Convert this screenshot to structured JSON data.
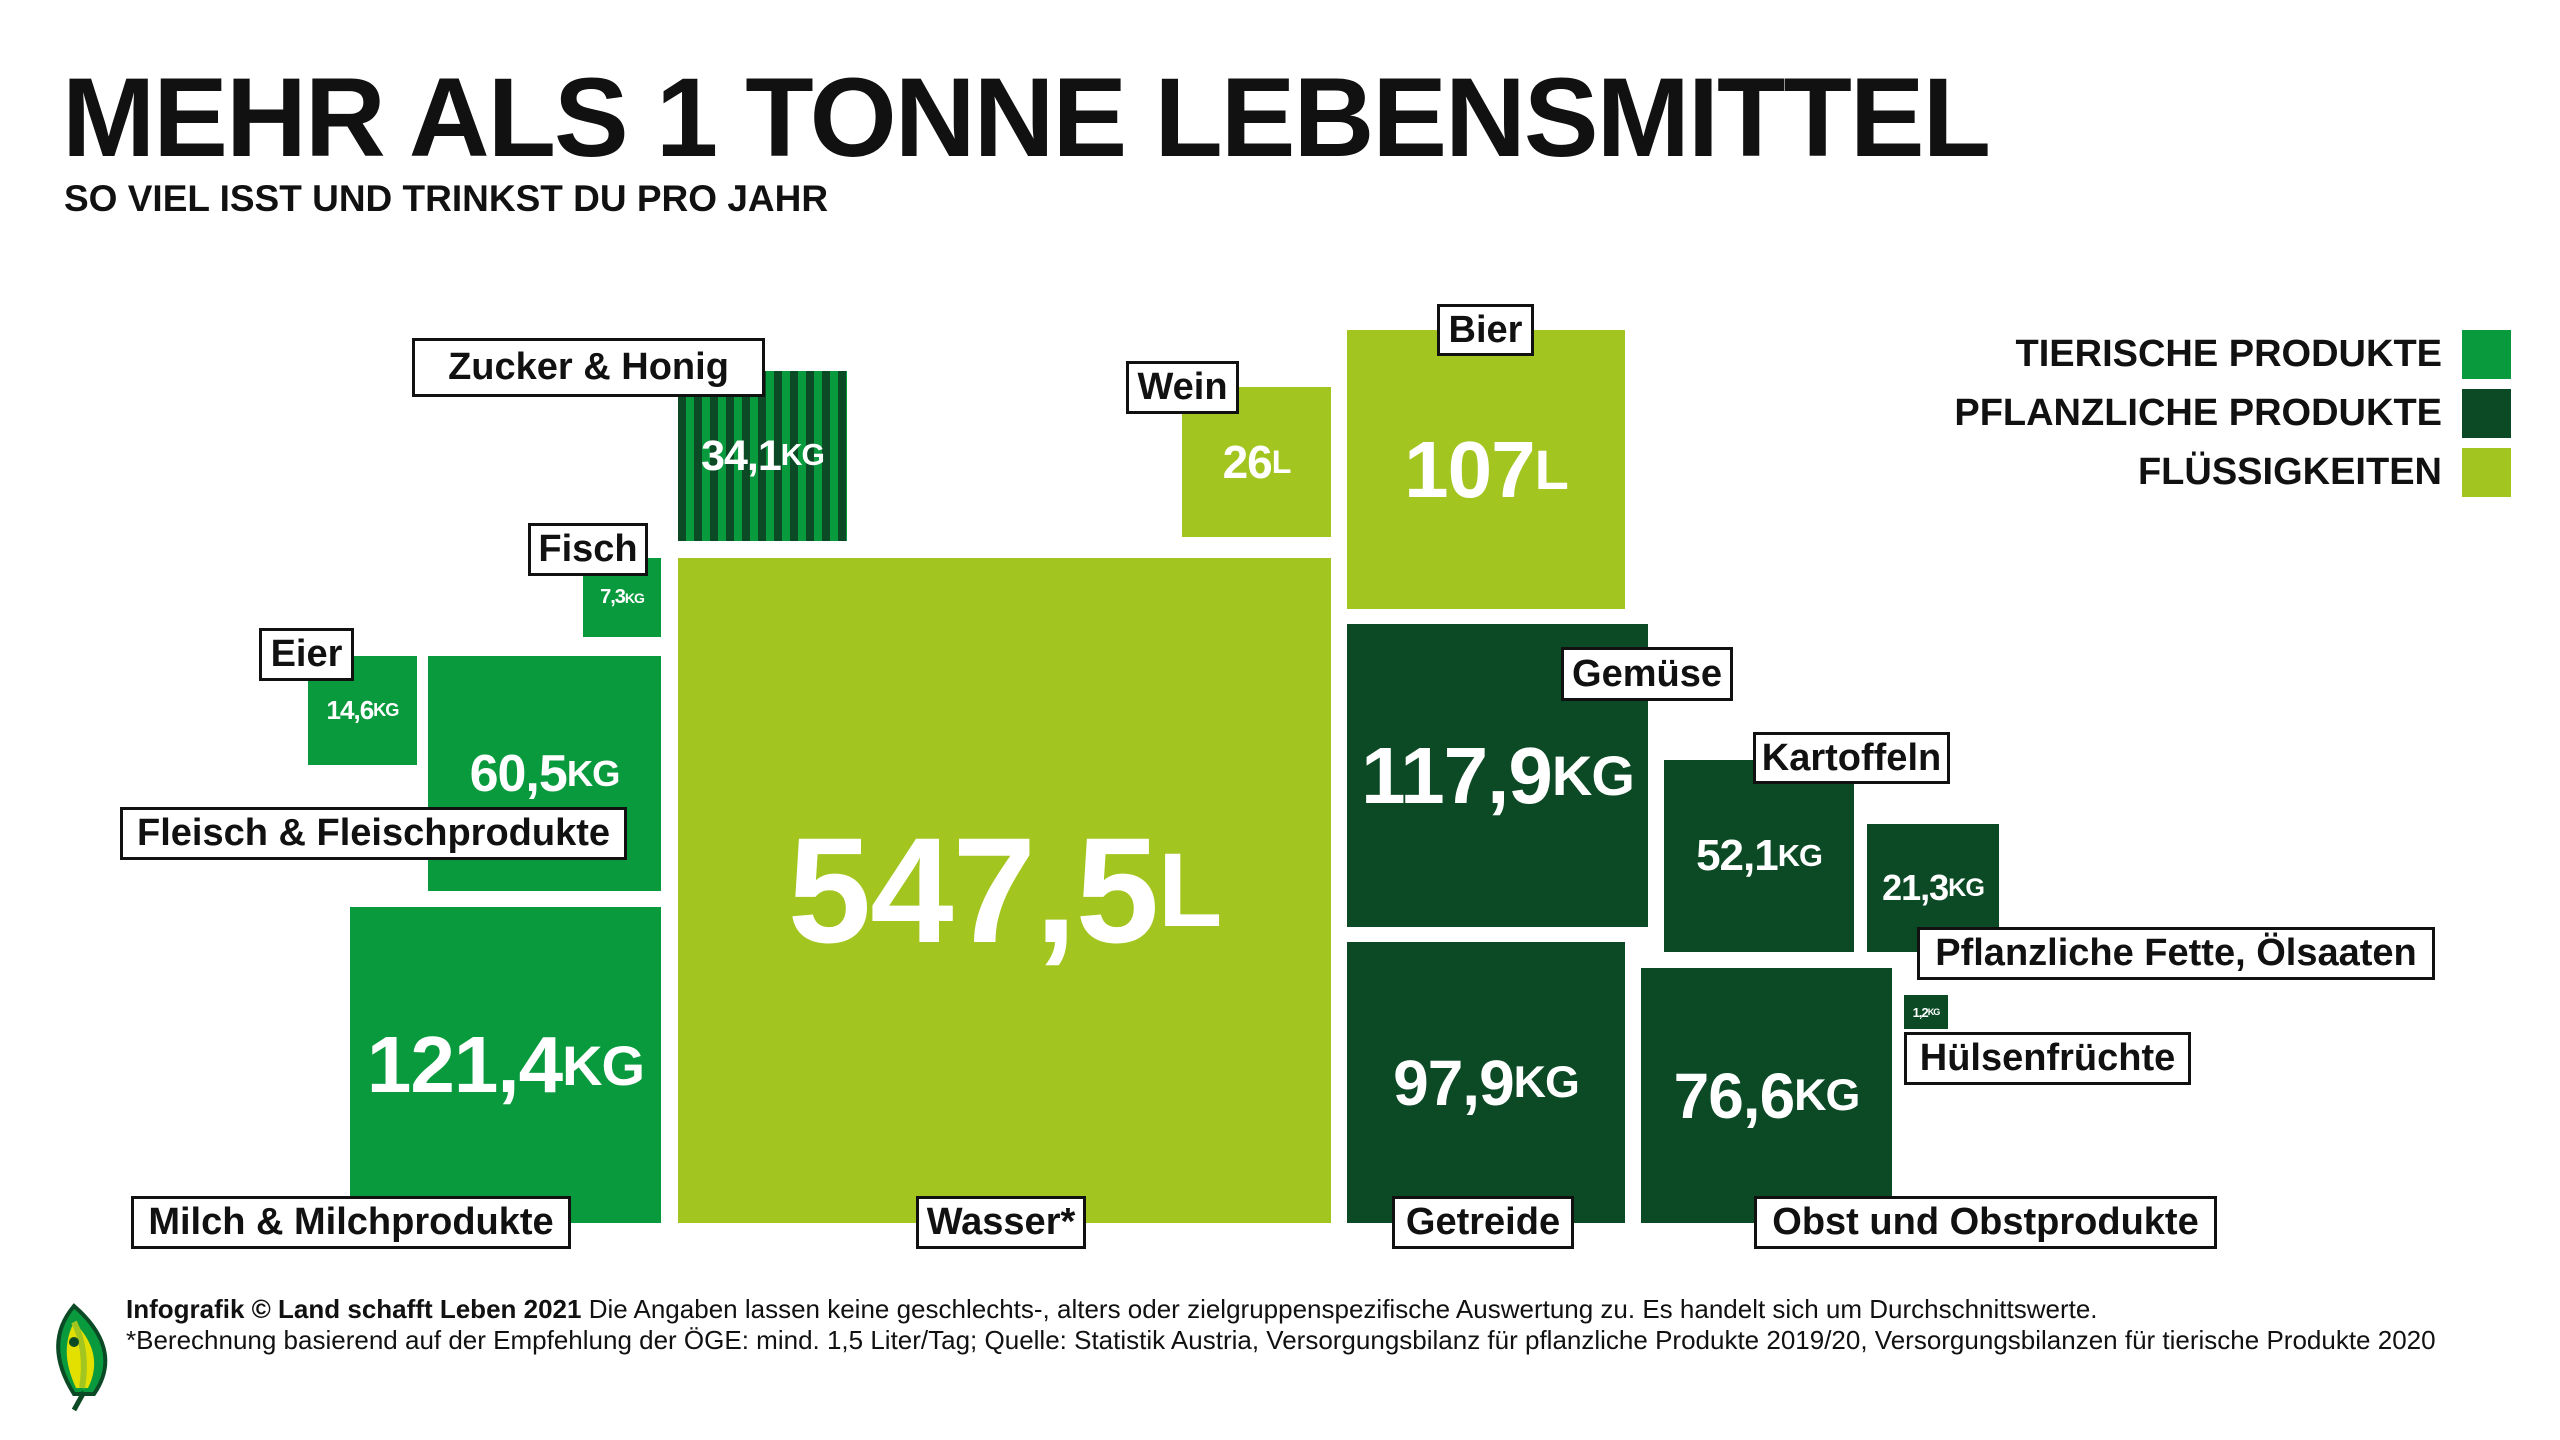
{
  "title": "MEHR ALS 1 TONNE LEBENSMITTEL",
  "subtitle": "SO VIEL ISST UND TRINKST DU PRO JAHR",
  "colors": {
    "tierische": "#0a9a3e",
    "pflanzliche": "#0b4a25",
    "fluessig": "#a3c51f"
  },
  "legend": [
    {
      "label": "TIERISCHE PRODUKTE",
      "color": "#0a9a3e"
    },
    {
      "label": "PFLANZLICHE PRODUKTE",
      "color": "#0b4a25"
    },
    {
      "label": "FLÜSSIGKEITEN",
      "color": "#a3c51f"
    }
  ],
  "chart_data": {
    "type": "treemap",
    "title": "MEHR ALS 1 TONNE LEBENSMITTEL",
    "items": [
      {
        "label": "Zucker & Honig",
        "value": "34,1",
        "unit": "KG",
        "category": "mixed"
      },
      {
        "label": "Fisch",
        "value": "7,3",
        "unit": "KG",
        "category": "tierische"
      },
      {
        "label": "Eier",
        "value": "14,6",
        "unit": "KG",
        "category": "tierische"
      },
      {
        "label": "Fleisch & Fleischprodukte",
        "value": "60,5",
        "unit": "KG",
        "category": "tierische"
      },
      {
        "label": "Milch & Milchprodukte",
        "value": "121,4",
        "unit": "KG",
        "category": "tierische"
      },
      {
        "label": "Wasser*",
        "value": "547,5",
        "unit": "L",
        "category": "fluessig"
      },
      {
        "label": "Wein",
        "value": "26",
        "unit": "L",
        "category": "fluessig"
      },
      {
        "label": "Bier",
        "value": "107",
        "unit": "L",
        "category": "fluessig"
      },
      {
        "label": "Gemüse",
        "value": "117,9",
        "unit": "KG",
        "category": "pflanzliche"
      },
      {
        "label": "Getreide",
        "value": "97,9",
        "unit": "KG",
        "category": "pflanzliche"
      },
      {
        "label": "Kartoffeln",
        "value": "52,1",
        "unit": "KG",
        "category": "pflanzliche"
      },
      {
        "label": "Pflanzliche Fette, Ölsaaten",
        "value": "21,3",
        "unit": "KG",
        "category": "pflanzliche"
      },
      {
        "label": "Obst und Obstprodukte",
        "value": "76,6",
        "unit": "KG",
        "category": "pflanzliche"
      },
      {
        "label": "Hülsenfrüchte",
        "value": "1,2",
        "unit": "KG",
        "category": "pflanzliche"
      }
    ]
  },
  "footer": {
    "bold": "Infografik © Land schafft Leben 2021",
    "line1": " Die Angaben lassen keine geschlechts-, alters oder zielgruppenspezifische Auswertung zu. Es handelt sich um Durchschnittswerte.",
    "line2": "*Berechnung basierend auf der Empfehlung der ÖGE: mind. 1,5 Liter/Tag; Quelle: Statistik Austria, Versorgungsbilanz für pflanzliche Produkte 2019/20, Versorgungsbilanzen für tierische Produkte 2020"
  }
}
